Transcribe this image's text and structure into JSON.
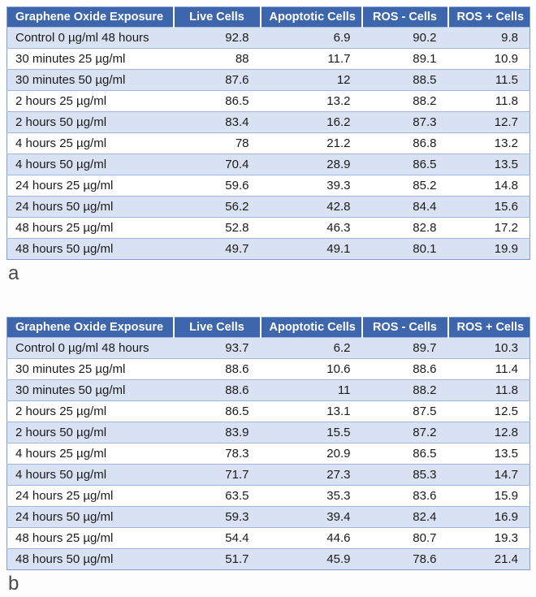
{
  "style": {
    "header_bg": "#3E66AC",
    "band_row_bg": "#D9E2F3",
    "border_color": "#9FB8E2",
    "header_text": "#ffffff"
  },
  "chart_data": [
    {
      "type": "table",
      "panel_label": "a",
      "columns": [
        "Graphene Oxide Exposure",
        "Live Cells",
        "Apoptotic Cells",
        "ROS - Cells",
        "ROS + Cells"
      ],
      "rows": [
        [
          "Control 0 µg/ml 48 hours",
          92.8,
          6.9,
          90.2,
          9.8
        ],
        [
          "30 minutes 25 µg/ml",
          88,
          11.7,
          89.1,
          10.9
        ],
        [
          "30 minutes 50 µg/ml",
          87.6,
          12,
          88.5,
          11.5
        ],
        [
          "2 hours 25 µg/ml",
          86.5,
          13.2,
          88.2,
          11.8
        ],
        [
          "2 hours 50 µg/ml",
          83.4,
          16.2,
          87.3,
          12.7
        ],
        [
          "4 hours 25 µg/ml",
          78,
          21.2,
          86.8,
          13.2
        ],
        [
          "4 hours 50 µg/ml",
          70.4,
          28.9,
          86.5,
          13.5
        ],
        [
          "24 hours 25 µg/ml",
          59.6,
          39.3,
          85.2,
          14.8
        ],
        [
          "24 hours 50 µg/ml",
          56.2,
          42.8,
          84.4,
          15.6
        ],
        [
          "48 hours 25 µg/ml",
          52.8,
          46.3,
          82.8,
          17.2
        ],
        [
          "48 hours 50 µg/ml",
          49.7,
          49.1,
          80.1,
          19.9
        ]
      ]
    },
    {
      "type": "table",
      "panel_label": "b",
      "columns": [
        "Graphene Oxide Exposure",
        "Live Cells",
        "Apoptotic Cells",
        "ROS - Cells",
        "ROS + Cells"
      ],
      "rows": [
        [
          "Control 0 µg/ml 48 hours",
          93.7,
          6.2,
          89.7,
          10.3
        ],
        [
          "30 minutes 25 µg/ml",
          88.6,
          10.6,
          88.6,
          11.4
        ],
        [
          "30 minutes 50 µg/ml",
          88.6,
          11,
          88.2,
          11.8
        ],
        [
          "2 hours 25 µg/ml",
          86.5,
          13.1,
          87.5,
          12.5
        ],
        [
          "2 hours 50 µg/ml",
          83.9,
          15.5,
          87.2,
          12.8
        ],
        [
          "4 hours 25 µg/ml",
          78.3,
          20.9,
          86.5,
          13.5
        ],
        [
          "4 hours 50 µg/ml",
          71.7,
          27.3,
          85.3,
          14.7
        ],
        [
          "24 hours 25 µg/ml",
          63.5,
          35.3,
          83.6,
          15.9
        ],
        [
          "24 hours 50 µg/ml",
          59.3,
          39.4,
          82.4,
          16.9
        ],
        [
          "48 hours 25 µg/ml",
          54.4,
          44.6,
          80.7,
          19.3
        ],
        [
          "48 hours 50 µg/ml",
          51.7,
          45.9,
          78.6,
          21.4
        ]
      ]
    }
  ]
}
